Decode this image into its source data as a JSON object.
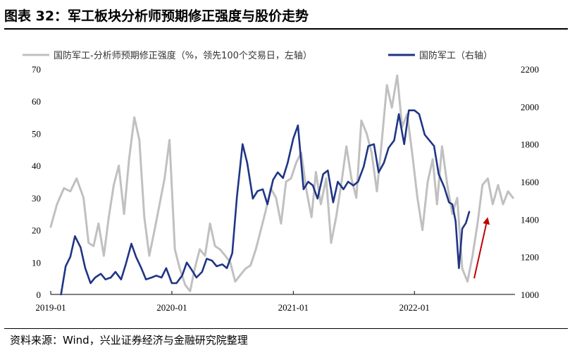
{
  "header": {
    "title": "图表 32：军工板块分析师预期修正强度与股价走势"
  },
  "footer": {
    "source": "资料来源：Wind，兴业证券经济与金融研究院整理"
  },
  "colors": {
    "left_series": "#c0c0c0",
    "right_series": "#1f3585",
    "arrow": "#c00000"
  },
  "chart_data": {
    "type": "line",
    "title": "",
    "xlabel": "",
    "ylabel_left": "",
    "ylabel_right": "",
    "x_range": [
      "2019-01-01",
      "2022-10-31"
    ],
    "x_ticks": [
      "2019-01",
      "2020-01",
      "2021-01",
      "2022-01"
    ],
    "ylim_left": [
      0,
      70
    ],
    "yticks_left": [
      0,
      10,
      20,
      30,
      40,
      50,
      60,
      70
    ],
    "ylim_right": [
      1000,
      2200
    ],
    "yticks_right": [
      1000,
      1200,
      1400,
      1600,
      1800,
      2000,
      2200
    ],
    "legend_position": "top",
    "grid": false,
    "series": [
      {
        "name": "国防军工-分析师预期修正强度（%，领先100个交易日，左轴）",
        "axis": "left",
        "color": "#c0c0c0",
        "x": [
          "2019-01-01",
          "2019-01-20",
          "2019-02-10",
          "2019-03-01",
          "2019-03-20",
          "2019-04-10",
          "2019-04-25",
          "2019-05-10",
          "2019-05-25",
          "2019-06-10",
          "2019-06-25",
          "2019-07-10",
          "2019-07-25",
          "2019-08-10",
          "2019-08-25",
          "2019-09-10",
          "2019-09-25",
          "2019-10-10",
          "2019-10-25",
          "2019-11-10",
          "2019-11-25",
          "2019-12-10",
          "2019-12-25",
          "2020-01-10",
          "2020-01-25",
          "2020-02-10",
          "2020-02-25",
          "2020-03-10",
          "2020-03-25",
          "2020-04-10",
          "2020-04-25",
          "2020-05-10",
          "2020-05-25",
          "2020-06-10",
          "2020-06-25",
          "2020-07-10",
          "2020-07-25",
          "2020-08-10",
          "2020-08-25",
          "2020-09-10",
          "2020-09-25",
          "2020-10-10",
          "2020-10-25",
          "2020-11-10",
          "2020-11-25",
          "2020-12-10",
          "2020-12-25",
          "2021-01-10",
          "2021-01-25",
          "2021-02-10",
          "2021-02-25",
          "2021-03-10",
          "2021-03-25",
          "2021-04-10",
          "2021-04-25",
          "2021-05-10",
          "2021-05-25",
          "2021-06-10",
          "2021-06-25",
          "2021-07-10",
          "2021-07-25",
          "2021-08-10",
          "2021-08-25",
          "2021-09-10",
          "2021-09-25",
          "2021-10-10",
          "2021-10-25",
          "2021-11-10",
          "2021-11-25",
          "2021-12-10",
          "2021-12-25",
          "2022-01-10",
          "2022-01-25",
          "2022-02-10",
          "2022-02-25",
          "2022-03-10",
          "2022-03-25",
          "2022-04-10",
          "2022-04-25",
          "2022-05-10",
          "2022-05-25",
          "2022-06-10",
          "2022-06-25",
          "2022-07-10",
          "2022-07-25",
          "2022-08-10",
          "2022-08-25",
          "2022-09-10",
          "2022-09-25",
          "2022-10-10",
          "2022-10-25"
        ],
        "values": [
          21,
          28,
          33,
          32,
          36,
          30,
          16,
          15,
          22,
          12,
          24,
          34,
          40,
          25,
          42,
          55,
          48,
          24,
          12,
          20,
          28,
          36,
          48,
          14,
          8,
          3,
          1,
          8,
          14,
          12,
          22,
          15,
          14,
          12,
          10,
          4,
          6,
          8,
          9,
          14,
          20,
          26,
          33,
          30,
          22,
          35,
          36,
          41,
          44,
          32,
          24,
          38,
          28,
          36,
          16,
          24,
          34,
          46,
          36,
          30,
          54,
          50,
          44,
          32,
          48,
          65,
          58,
          68,
          52,
          56,
          44,
          30,
          20,
          35,
          42,
          28,
          46,
          34,
          25,
          30,
          8,
          4,
          12,
          22,
          34,
          36,
          28,
          34,
          28,
          32,
          30
        ]
      },
      {
        "name": "国防军工（右轴）",
        "axis": "right",
        "color": "#1f3585",
        "x": [
          "2019-02-01",
          "2019-02-15",
          "2019-03-01",
          "2019-03-15",
          "2019-04-01",
          "2019-04-15",
          "2019-05-01",
          "2019-05-15",
          "2019-06-01",
          "2019-06-15",
          "2019-07-01",
          "2019-07-15",
          "2019-08-01",
          "2019-08-15",
          "2019-09-01",
          "2019-09-15",
          "2019-10-01",
          "2019-10-15",
          "2019-11-01",
          "2019-11-15",
          "2019-12-01",
          "2019-12-15",
          "2020-01-01",
          "2020-01-15",
          "2020-02-01",
          "2020-02-15",
          "2020-03-01",
          "2020-03-15",
          "2020-04-01",
          "2020-04-15",
          "2020-05-01",
          "2020-05-15",
          "2020-06-01",
          "2020-06-15",
          "2020-07-01",
          "2020-07-15",
          "2020-08-01",
          "2020-08-15",
          "2020-09-01",
          "2020-09-15",
          "2020-10-01",
          "2020-10-15",
          "2020-11-01",
          "2020-11-15",
          "2020-12-01",
          "2020-12-15",
          "2021-01-01",
          "2021-01-15",
          "2021-02-01",
          "2021-02-15",
          "2021-03-01",
          "2021-03-15",
          "2021-04-01",
          "2021-04-15",
          "2021-05-01",
          "2021-05-15",
          "2021-06-01",
          "2021-06-15",
          "2021-07-01",
          "2021-07-15",
          "2021-08-01",
          "2021-08-15",
          "2021-09-01",
          "2021-09-15",
          "2021-10-01",
          "2021-10-15",
          "2021-11-01",
          "2021-11-15",
          "2021-12-01",
          "2021-12-15",
          "2022-01-01",
          "2022-01-15",
          "2022-02-01",
          "2022-02-15",
          "2022-03-01",
          "2022-03-15",
          "2022-04-01",
          "2022-04-15",
          "2022-04-25",
          "2022-05-05",
          "2022-05-15",
          "2022-05-25",
          "2022-06-05",
          "2022-06-15"
        ],
        "values": [
          1000,
          1150,
          1200,
          1310,
          1250,
          1140,
          1060,
          1090,
          1110,
          1080,
          1090,
          1120,
          1080,
          1160,
          1270,
          1200,
          1140,
          1080,
          1090,
          1100,
          1090,
          1140,
          1060,
          1060,
          1100,
          1170,
          1130,
          1090,
          1120,
          1190,
          1180,
          1150,
          1160,
          1140,
          1220,
          1520,
          1800,
          1700,
          1510,
          1550,
          1560,
          1480,
          1610,
          1650,
          1620,
          1700,
          1830,
          1900,
          1560,
          1600,
          1580,
          1510,
          1640,
          1660,
          1490,
          1600,
          1560,
          1600,
          1580,
          1600,
          1680,
          1790,
          1800,
          1650,
          1700,
          1780,
          1820,
          1960,
          1800,
          1980,
          1980,
          1960,
          1850,
          1820,
          1790,
          1640,
          1570,
          1490,
          1480,
          1390,
          1140,
          1350,
          1380,
          1440
        ]
      }
    ],
    "annotations": [
      {
        "type": "arrow",
        "color": "#c00000",
        "from": [
          "2022-06-30",
          5
        ],
        "to": [
          "2022-08-10",
          24
        ]
      }
    ]
  }
}
